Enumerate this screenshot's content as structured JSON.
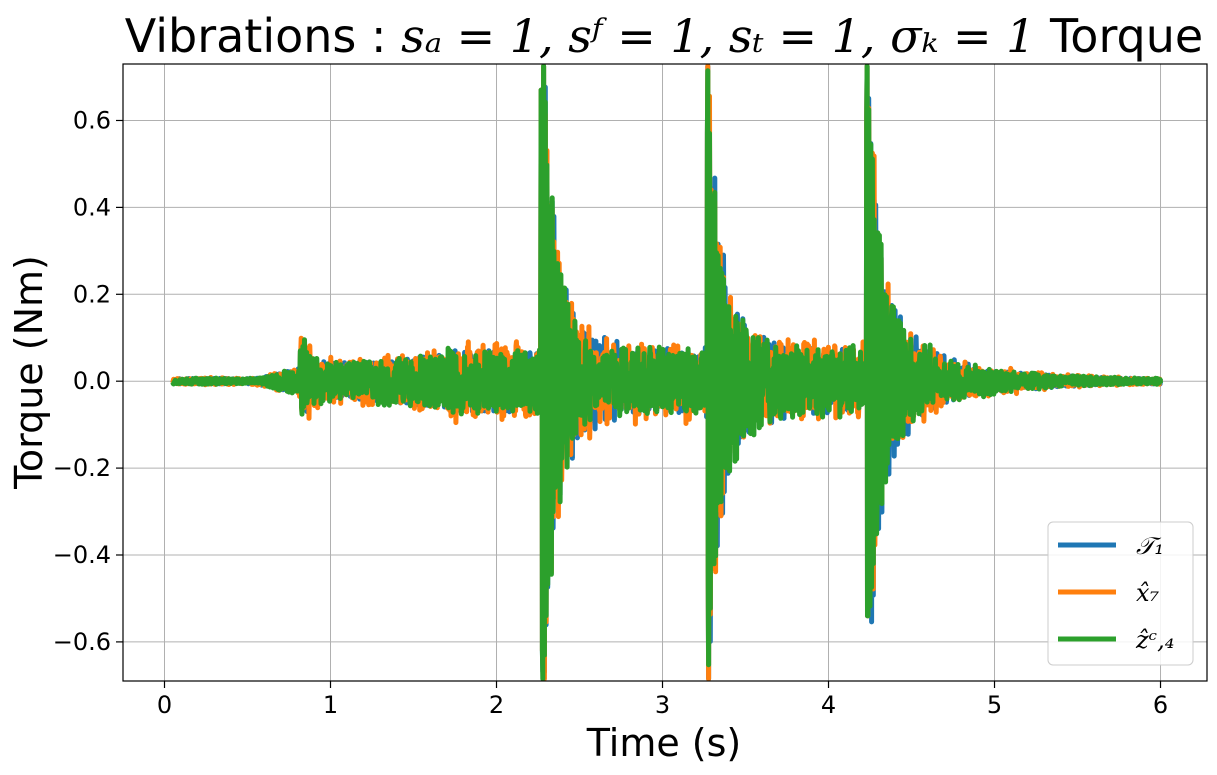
{
  "chart_data": {
    "type": "line",
    "title_parts": {
      "prefix": "Vibrations : ",
      "math": "sₐ = 1, sᶠ = 1, sₜ = 1, σₖ = 1",
      "suffix": " Torque"
    },
    "xlabel": "Time (s)",
    "ylabel": "Torque (Nm)",
    "xlim": [
      -0.25,
      6.28
    ],
    "ylim": [
      -0.69,
      0.73
    ],
    "xticks": [
      0,
      1,
      2,
      3,
      4,
      5,
      6
    ],
    "yticks": [
      -0.6,
      -0.4,
      -0.2,
      0.0,
      0.2,
      0.4,
      0.6
    ],
    "xtick_labels": [
      "0",
      "1",
      "2",
      "3",
      "4",
      "5",
      "6"
    ],
    "ytick_labels": [
      "−0.6",
      "−0.4",
      "−0.2",
      "0.0",
      "0.2",
      "0.4",
      "0.6"
    ],
    "grid": true,
    "legend_position": "bottom-right",
    "x_range": [
      0.05,
      6.0
    ],
    "events": [
      {
        "t": 0.82,
        "peak": 0.07,
        "trough": -0.06
      },
      {
        "t": 2.27,
        "peak": 0.67,
        "trough": -0.62
      },
      {
        "t": 3.27,
        "peak": 0.57,
        "trough": -0.44
      },
      {
        "t": 4.23,
        "peak": 0.61,
        "trough": -0.54
      }
    ],
    "series": [
      {
        "name": "𝒯₁",
        "color": "#1f77b4",
        "line_width": 5
      },
      {
        "name": "x̂₇",
        "color": "#ff7f0e",
        "line_width": 5
      },
      {
        "name": "ẑᶜ,₄",
        "color": "#2ca02c",
        "line_width": 5
      }
    ]
  }
}
